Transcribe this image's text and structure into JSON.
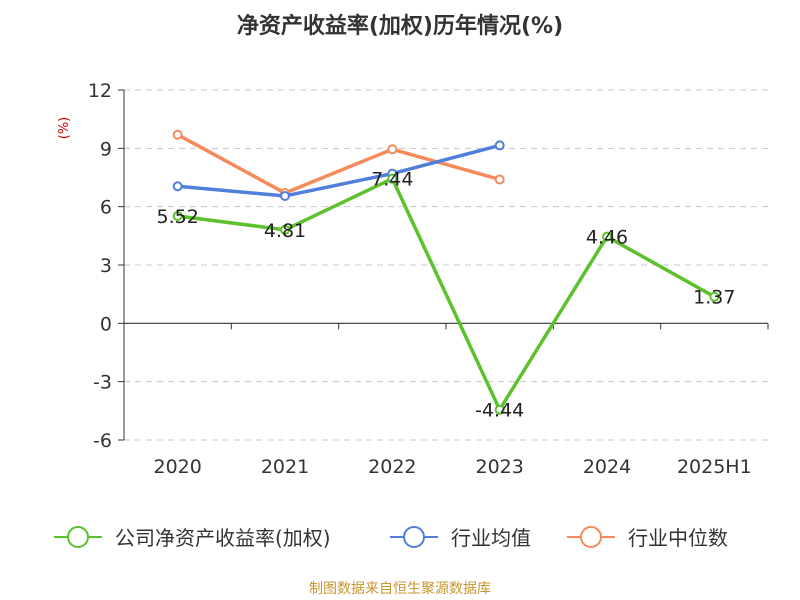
{
  "chart_data": {
    "type": "line",
    "title": "净资产收益率(加权)历年情况(%)",
    "ylabel": "(%)",
    "categories": [
      "2020",
      "2021",
      "2022",
      "2023",
      "2024",
      "2025H1"
    ],
    "yticks": [
      "12",
      "9",
      "6",
      "3",
      "0",
      "-3",
      "-6"
    ],
    "ylim": [
      -6,
      12
    ],
    "grid": true,
    "legend_position": "bottom",
    "series": [
      {
        "name": "公司净资产收益率(加权)",
        "color": "#5cc12d",
        "values": [
          5.52,
          4.81,
          7.44,
          -4.44,
          4.46,
          1.37
        ],
        "labels": [
          "5.52",
          "4.81",
          "7.44",
          "-4.44",
          "4.46",
          "1.37"
        ]
      },
      {
        "name": "行业均值",
        "color": "#4f7fdb",
        "values": [
          7.05,
          6.55,
          7.7,
          9.15,
          null,
          null
        ]
      },
      {
        "name": "行业中位数",
        "color": "#f58a5a",
        "values": [
          9.7,
          6.7,
          8.95,
          7.4,
          null,
          null
        ]
      }
    ],
    "source": "制图数据来自恒生聚源数据库"
  }
}
